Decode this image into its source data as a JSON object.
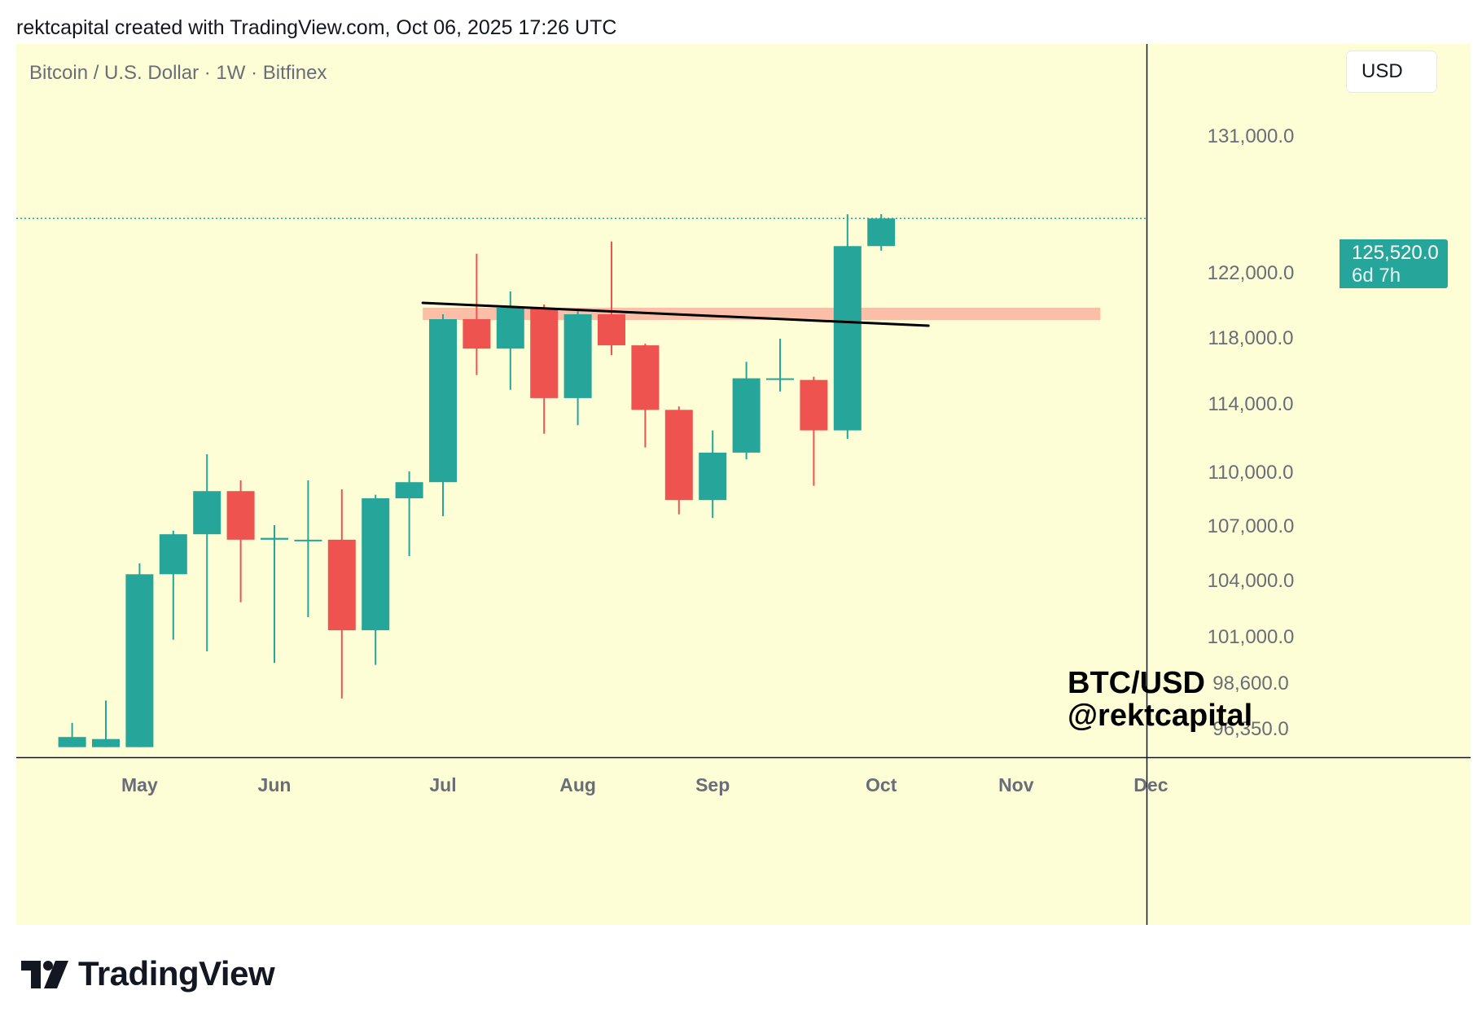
{
  "header": {
    "attribution": "rektcapital created with TradingView.com, Oct 06, 2025 17:26 UTC"
  },
  "chart": {
    "symbol_title": "Bitcoin / U.S. Dollar · 1W · Bitfinex",
    "currency_button": "USD",
    "price_tag": {
      "price": "125,520.0",
      "countdown": "6d 7h"
    },
    "watermark_line1": "BTC/USD",
    "watermark_line2": "@rektcapital"
  },
  "footer": {
    "brand": "TradingView"
  },
  "colors": {
    "bull": "#26a69a",
    "bear": "#ef5350",
    "background": "#fefed6",
    "zone": "#fbbfa8",
    "trendline": "#000000"
  },
  "chart_data": {
    "type": "candlestick",
    "title": "Bitcoin / U.S. Dollar · 1W · Bitfinex",
    "y_axis_side": "right",
    "y_ticks": [
      {
        "label": "131,000.0",
        "value": 131000
      },
      {
        "label": "125,520.0",
        "value": 125520,
        "hidden": true
      },
      {
        "label": "122,000.0",
        "value": 122000
      },
      {
        "label": "118,000.0",
        "value": 118000
      },
      {
        "label": "114,000.0",
        "value": 114000
      },
      {
        "label": "110,000.0",
        "value": 110000
      },
      {
        "label": "107,000.0",
        "value": 107000
      },
      {
        "label": "104,000.0",
        "value": 104000
      },
      {
        "label": "101,000.0",
        "value": 101000
      },
      {
        "label": "98,600.0",
        "value": 98600
      },
      {
        "label": "96,350.0",
        "value": 96350
      }
    ],
    "x_ticks": [
      {
        "label": "May",
        "week": 1
      },
      {
        "label": "Jun",
        "week": 5
      },
      {
        "label": "Jul",
        "week": 10
      },
      {
        "label": "Aug",
        "week": 14
      },
      {
        "label": "Sep",
        "week": 18
      },
      {
        "label": "Oct",
        "week": 23
      },
      {
        "label": "Nov",
        "week": 27
      },
      {
        "label": "Dec",
        "week": 31
      }
    ],
    "candles": [
      {
        "week": -1,
        "o": 95400,
        "h": 96600,
        "l": 95400,
        "c": 95900
      },
      {
        "week": 0,
        "o": 95400,
        "h": 97700,
        "l": 95400,
        "c": 95800
      },
      {
        "week": 1,
        "o": 95400,
        "h": 104900,
        "l": 95400,
        "c": 104300
      },
      {
        "week": 2,
        "o": 104300,
        "h": 106700,
        "l": 100800,
        "c": 106500
      },
      {
        "week": 3,
        "o": 106500,
        "h": 111000,
        "l": 100200,
        "c": 108900
      },
      {
        "week": 4,
        "o": 108900,
        "h": 109500,
        "l": 102800,
        "c": 106200
      },
      {
        "week": 5,
        "o": 106200,
        "h": 107000,
        "l": 99600,
        "c": 106300
      },
      {
        "week": 6,
        "o": 106200,
        "h": 109500,
        "l": 102000,
        "c": 106200
      },
      {
        "week": 7,
        "o": 106200,
        "h": 109000,
        "l": 97800,
        "c": 101300
      },
      {
        "week": 8,
        "o": 101300,
        "h": 108700,
        "l": 99500,
        "c": 108500
      },
      {
        "week": 9,
        "o": 108500,
        "h": 110000,
        "l": 105300,
        "c": 109400
      },
      {
        "week": 10,
        "o": 109400,
        "h": 119400,
        "l": 107500,
        "c": 119100
      },
      {
        "week": 11,
        "o": 119100,
        "h": 123200,
        "l": 115700,
        "c": 117300
      },
      {
        "week": 12,
        "o": 117300,
        "h": 120800,
        "l": 114800,
        "c": 119800
      },
      {
        "week": 13,
        "o": 119800,
        "h": 120000,
        "l": 112200,
        "c": 114300
      },
      {
        "week": 14,
        "o": 114300,
        "h": 119600,
        "l": 112700,
        "c": 119400
      },
      {
        "week": 15,
        "o": 119400,
        "h": 124000,
        "l": 116900,
        "c": 117500
      },
      {
        "week": 16,
        "o": 117500,
        "h": 117600,
        "l": 111400,
        "c": 113600
      },
      {
        "week": 17,
        "o": 113600,
        "h": 113800,
        "l": 107600,
        "c": 108400
      },
      {
        "week": 18,
        "o": 108400,
        "h": 112400,
        "l": 107400,
        "c": 111100
      },
      {
        "week": 19,
        "o": 111100,
        "h": 116500,
        "l": 110700,
        "c": 115500
      },
      {
        "week": 20,
        "o": 115400,
        "h": 117900,
        "l": 114700,
        "c": 115500
      },
      {
        "week": 21,
        "o": 115400,
        "h": 115600,
        "l": 109200,
        "c": 112400
      },
      {
        "week": 22,
        "o": 112400,
        "h": 125800,
        "l": 111900,
        "c": 123700
      },
      {
        "week": 23,
        "o": 123700,
        "h": 125800,
        "l": 123400,
        "c": 125520
      }
    ],
    "current_price": 125520,
    "resistance_zone": {
      "from_week": 9.4,
      "to_week": 29.5,
      "low": 119050,
      "high": 119800
    },
    "trendline": {
      "from_week": 9.4,
      "from_price": 120100,
      "to_week": 24.4,
      "to_price": 118700
    }
  }
}
